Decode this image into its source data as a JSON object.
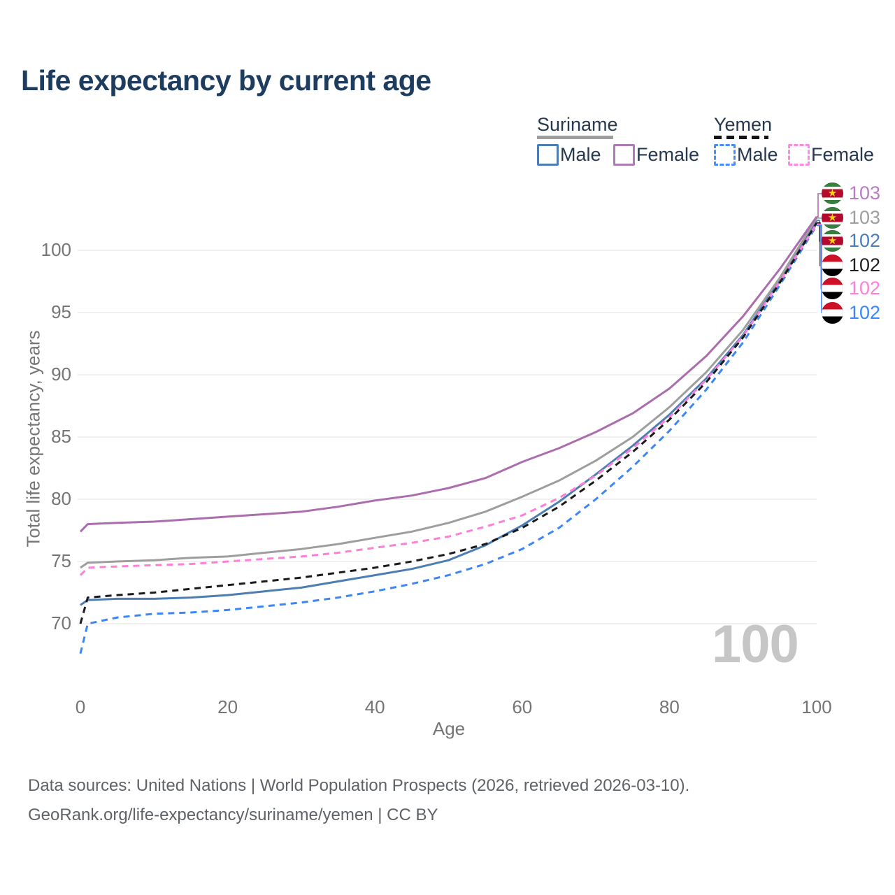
{
  "title": "Life expectancy by current age",
  "legend": {
    "groups": [
      {
        "name": "Suriname",
        "line_style": "solid",
        "underline_color": "#9e9e9e",
        "items": [
          {
            "label": "Male",
            "color": "#4d7eb3",
            "line_style": "solid"
          },
          {
            "label": "Female",
            "color": "#b07ab8",
            "line_style": "solid"
          }
        ]
      },
      {
        "name": "Yemen",
        "line_style": "dashed",
        "underline_color": "#141414",
        "items": [
          {
            "label": "Male",
            "color": "#4a8df8",
            "line_style": "dashed"
          },
          {
            "label": "Female",
            "color": "#fd8ae2",
            "line_style": "dashed"
          }
        ]
      }
    ]
  },
  "watermark": "100",
  "chart_data": {
    "type": "line",
    "title": "Life expectancy by current age",
    "xlabel": "Age",
    "ylabel": "Total life expectancy, years",
    "x_ticks": [
      0,
      20,
      40,
      60,
      80,
      100
    ],
    "y_ticks": [
      70,
      75,
      80,
      85,
      90,
      95,
      100
    ],
    "xlim": [
      0,
      100
    ],
    "ylim": [
      67,
      104
    ],
    "grid": "horizontal",
    "legend_position": "top-right",
    "x": [
      0,
      1,
      5,
      10,
      15,
      20,
      25,
      30,
      35,
      40,
      45,
      50,
      55,
      60,
      65,
      70,
      75,
      80,
      85,
      90,
      95,
      100
    ],
    "series": [
      {
        "id": "suriname-female",
        "name": "Suriname Female",
        "country": "Suriname",
        "sex": "Female",
        "color": "#ab6dad",
        "line_style": "solid",
        "flag": "suriname",
        "end_label": "103",
        "end_label_color": "#b87cc2",
        "values": [
          77.4,
          78.0,
          78.1,
          78.2,
          78.4,
          78.6,
          78.8,
          79.0,
          79.4,
          79.9,
          80.3,
          80.9,
          81.7,
          83.0,
          84.1,
          85.4,
          86.9,
          88.9,
          91.5,
          94.7,
          98.5,
          102.7
        ]
      },
      {
        "id": "suriname-all",
        "name": "Suriname",
        "country": "Suriname",
        "sex": "All",
        "color": "#9e9e9e",
        "line_style": "solid",
        "flag": "suriname",
        "end_label": "103",
        "end_label_color": "#9e9e9e",
        "values": [
          74.5,
          74.9,
          75.0,
          75.1,
          75.3,
          75.4,
          75.7,
          76.0,
          76.4,
          76.9,
          77.4,
          78.1,
          79.0,
          80.2,
          81.5,
          83.1,
          85.0,
          87.4,
          90.2,
          93.6,
          97.8,
          102.6
        ]
      },
      {
        "id": "suriname-male",
        "name": "Suriname Male",
        "country": "Suriname",
        "sex": "Male",
        "color": "#4d7eb3",
        "line_style": "solid",
        "flag": "suriname",
        "end_label": "102",
        "end_label_color": "#4b7dbb",
        "values": [
          71.5,
          71.9,
          72.0,
          72.0,
          72.1,
          72.3,
          72.6,
          72.9,
          73.4,
          73.9,
          74.4,
          75.1,
          76.3,
          77.9,
          79.8,
          82.0,
          84.3,
          86.8,
          89.7,
          93.2,
          97.6,
          102.4
        ]
      },
      {
        "id": "yemen-all",
        "name": "Yemen",
        "country": "Yemen",
        "sex": "All",
        "color": "#1a1a1a",
        "line_style": "dashed",
        "flag": "yemen",
        "end_label": "102",
        "end_label_color": "#212121",
        "values": [
          70.0,
          72.1,
          72.3,
          72.5,
          72.8,
          73.1,
          73.4,
          73.7,
          74.1,
          74.5,
          75.0,
          75.6,
          76.4,
          77.7,
          79.4,
          81.5,
          83.8,
          86.4,
          89.4,
          93.0,
          97.4,
          102.2
        ]
      },
      {
        "id": "yemen-female",
        "name": "Yemen Female",
        "country": "Yemen",
        "sex": "Female",
        "color": "#fd7fd8",
        "line_style": "dashed",
        "flag": "yemen",
        "end_label": "102",
        "end_label_color": "#fd7fd8",
        "values": [
          73.9,
          74.5,
          74.6,
          74.7,
          74.8,
          75.0,
          75.2,
          75.4,
          75.7,
          76.1,
          76.5,
          77.0,
          77.8,
          78.7,
          80.1,
          81.9,
          84.1,
          86.6,
          89.6,
          93.1,
          97.5,
          102.1
        ]
      },
      {
        "id": "yemen-male",
        "name": "Yemen Male",
        "country": "Yemen",
        "sex": "Male",
        "color": "#3d86f6",
        "line_style": "dashed",
        "flag": "yemen",
        "end_label": "102",
        "end_label_color": "#3d86f6",
        "values": [
          67.6,
          70.0,
          70.5,
          70.8,
          70.9,
          71.1,
          71.4,
          71.7,
          72.1,
          72.6,
          73.2,
          73.9,
          74.8,
          76.0,
          77.7,
          80.0,
          82.6,
          85.5,
          88.8,
          92.6,
          97.2,
          102.0
        ]
      }
    ]
  },
  "footer": {
    "line1": "Data sources: United Nations | World Population Prospects (2026, retrieved 2026-03-10).",
    "line2": "GeoRank.org/life-expectancy/suriname/yemen | CC BY"
  }
}
